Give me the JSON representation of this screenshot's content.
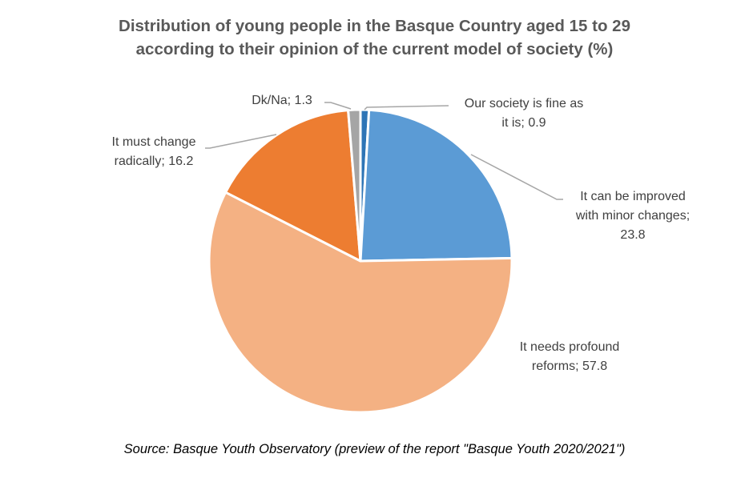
{
  "chart_data": {
    "type": "pie",
    "title": "Distribution of young people in the Basque Country aged 15 to 29 according to their opinion of the current model of society (%)",
    "title_lines": [
      "Distribution of young people in the Basque Country aged 15 to 29",
      "according to their opinion  of the current model of society (%)"
    ],
    "start_angle": "12 o'clock, clockwise",
    "categories": [
      "Our society is fine as it is",
      "It can be improved with minor changes",
      "It needs profound reforms",
      "It must change radically",
      "Dk/Na"
    ],
    "values": [
      0.9,
      23.8,
      57.8,
      16.2,
      1.3
    ],
    "colors": [
      "#2E75B6",
      "#5B9BD5",
      "#F4B183",
      "#ED7D31",
      "#A5A5A5"
    ],
    "data_labels": [
      [
        "Our society is fine as",
        "it is; 0.9"
      ],
      [
        "It can be improved",
        "with minor changes;",
        "23.8"
      ],
      [
        "It needs profound",
        "reforms; 57.8"
      ],
      [
        "It must change",
        "radically; 16.2"
      ],
      [
        "Dk/Na; 1.3"
      ]
    ],
    "legend": "none",
    "source": "Source: Basque Youth Observatory (preview of the report \"Basque Youth 2020/2021\")"
  }
}
